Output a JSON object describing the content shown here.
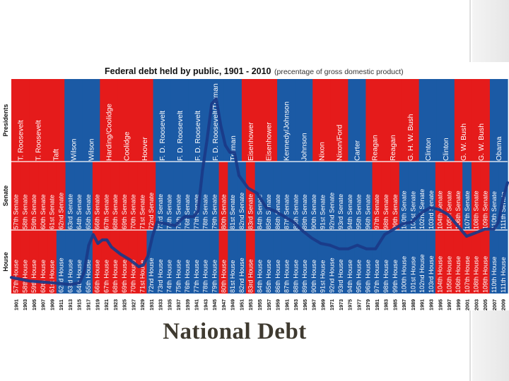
{
  "slide": {
    "title": "National Debt"
  },
  "colors": {
    "republican": "#e51b1b",
    "democrat": "#1b5aa5",
    "debt_line": "#1a3a88",
    "background": "#ffffff"
  },
  "chart_data": {
    "type": "line",
    "title": "Federal debt held by public, 1901 - 2010",
    "subtitle": "(precentage of gross domestic product)",
    "xlabel": "",
    "ylabel": "",
    "row_labels": [
      "Presidents",
      "Senate",
      "House"
    ],
    "x_ticks": [
      "1901",
      "1903",
      "1905",
      "1907",
      "1909",
      "1911",
      "1913",
      "1915",
      "1917",
      "1919",
      "1921",
      "1923",
      "1925",
      "1927",
      "1929",
      "1931",
      "1933",
      "1935",
      "1937",
      "1939",
      "1941",
      "1943",
      "1945",
      "1947",
      "1949",
      "1951",
      "1953",
      "1955",
      "1957",
      "1959",
      "1961",
      "1963",
      "1965",
      "1967",
      "1969",
      "1971",
      "1973",
      "1975",
      "1977",
      "1979",
      "1981",
      "1983",
      "1985",
      "1987",
      "1989",
      "1991",
      "1993",
      "1995",
      "1997",
      "1999",
      "2001",
      "2003",
      "2005",
      "2007",
      "2009"
    ],
    "presidents": [
      {
        "name": "T. Roosevelt",
        "party": "R"
      },
      {
        "name": "T. Roosevelt",
        "party": "R"
      },
      {
        "name": "Taft",
        "party": "R"
      },
      {
        "name": "Wilson",
        "party": "D"
      },
      {
        "name": "Wilson",
        "party": "D"
      },
      {
        "name": "Harding/Coolidge",
        "party": "R"
      },
      {
        "name": "Coolidge",
        "party": "R"
      },
      {
        "name": "Hoover",
        "party": "R"
      },
      {
        "name": "F. D. Roosevelt",
        "party": "D"
      },
      {
        "name": "F. D. Roosevelt",
        "party": "D"
      },
      {
        "name": "F. D. Roosevelt",
        "party": "D"
      },
      {
        "name": "F. D. Roosevelt/Truman",
        "party": "D"
      },
      {
        "name": "Truman",
        "party": "D"
      },
      {
        "name": "Eisenhower",
        "party": "R"
      },
      {
        "name": "Eisenhower",
        "party": "R"
      },
      {
        "name": "Kennedy/Johnson",
        "party": "D"
      },
      {
        "name": "Johnson",
        "party": "D"
      },
      {
        "name": "Nixon",
        "party": "R"
      },
      {
        "name": "Nixon/Ford",
        "party": "R"
      },
      {
        "name": "Carter",
        "party": "D"
      },
      {
        "name": "Reagan",
        "party": "R"
      },
      {
        "name": "Reagan",
        "party": "R"
      },
      {
        "name": "G. H. W. Bush",
        "party": "R"
      },
      {
        "name": "Clinton",
        "party": "D"
      },
      {
        "name": "Clinton",
        "party": "D"
      },
      {
        "name": "G. W. Bush",
        "party": "R"
      },
      {
        "name": "G. W. Bush",
        "party": "R"
      },
      {
        "name": "Obama",
        "party": "D"
      }
    ],
    "senate": [
      {
        "name": "57th Senate",
        "party": "R"
      },
      {
        "name": "58th Senate",
        "party": "R"
      },
      {
        "name": "59th Senate",
        "party": "R"
      },
      {
        "name": "60th Senate",
        "party": "R"
      },
      {
        "name": "61st Senate",
        "party": "R"
      },
      {
        "name": "62nd Senate",
        "party": "R"
      },
      {
        "name": "63rd Senate",
        "party": "D"
      },
      {
        "name": "64th Senate",
        "party": "D"
      },
      {
        "name": "65th Senate",
        "party": "D"
      },
      {
        "name": "66th Senate",
        "party": "R"
      },
      {
        "name": "67th Senate",
        "party": "R"
      },
      {
        "name": "68th Senate",
        "party": "R"
      },
      {
        "name": "69th Senate",
        "party": "R"
      },
      {
        "name": "70th Senate",
        "party": "R"
      },
      {
        "name": "71st Senate",
        "party": "R"
      },
      {
        "name": "72nd Senate",
        "party": "R"
      },
      {
        "name": "73rd Senate",
        "party": "D"
      },
      {
        "name": "74th Senate",
        "party": "D"
      },
      {
        "name": "75th Senate",
        "party": "D"
      },
      {
        "name": "76th Senate",
        "party": "D"
      },
      {
        "name": "77th Senate",
        "party": "D"
      },
      {
        "name": "78th Senate",
        "party": "D"
      },
      {
        "name": "79th Senate",
        "party": "D"
      },
      {
        "name": "80th Senate",
        "party": "R"
      },
      {
        "name": "81st Senate",
        "party": "D"
      },
      {
        "name": "82nd Senate",
        "party": "D"
      },
      {
        "name": "83rd Senate",
        "party": "R"
      },
      {
        "name": "84th Senate",
        "party": "D"
      },
      {
        "name": "85th Senate",
        "party": "D"
      },
      {
        "name": "86th Senate",
        "party": "D"
      },
      {
        "name": "87th Senate",
        "party": "D"
      },
      {
        "name": "88th Senate",
        "party": "D"
      },
      {
        "name": "89th Senate",
        "party": "D"
      },
      {
        "name": "90th Senate",
        "party": "D"
      },
      {
        "name": "91st Senate",
        "party": "D"
      },
      {
        "name": "92nd Senate",
        "party": "D"
      },
      {
        "name": "93rd Senate",
        "party": "D"
      },
      {
        "name": "94th Senate",
        "party": "D"
      },
      {
        "name": "95th Senate",
        "party": "D"
      },
      {
        "name": "96th Senate",
        "party": "D"
      },
      {
        "name": "97th Senate",
        "party": "R"
      },
      {
        "name": "98th Senate",
        "party": "R"
      },
      {
        "name": "99th Senate",
        "party": "R"
      },
      {
        "name": "100th Senate",
        "party": "D"
      },
      {
        "name": "101st Senate",
        "party": "D"
      },
      {
        "name": "102nd Senate",
        "party": "D"
      },
      {
        "name": "103rd Senate",
        "party": "D"
      },
      {
        "name": "104th Senate",
        "party": "R"
      },
      {
        "name": "105th Senate",
        "party": "R"
      },
      {
        "name": "106th Senate",
        "party": "R"
      },
      {
        "name": "107th Senate",
        "party": "D"
      },
      {
        "name": "108th Senate",
        "party": "R"
      },
      {
        "name": "109th Senate",
        "party": "R"
      },
      {
        "name": "110th Senate",
        "party": "D"
      },
      {
        "name": "111th Senate",
        "party": "D"
      }
    ],
    "house": [
      {
        "name": "57th House",
        "party": "R"
      },
      {
        "name": "58th House",
        "party": "R"
      },
      {
        "name": "59th House",
        "party": "R"
      },
      {
        "name": "60th House",
        "party": "R"
      },
      {
        "name": "61st House",
        "party": "R"
      },
      {
        "name": "62nd House",
        "party": "D"
      },
      {
        "name": "63rd House",
        "party": "D"
      },
      {
        "name": "64th House",
        "party": "D"
      },
      {
        "name": "65th House",
        "party": "D"
      },
      {
        "name": "66th House",
        "party": "R"
      },
      {
        "name": "67th House",
        "party": "R"
      },
      {
        "name": "68th House",
        "party": "R"
      },
      {
        "name": "69th House",
        "party": "R"
      },
      {
        "name": "70th House",
        "party": "R"
      },
      {
        "name": "71st House",
        "party": "R"
      },
      {
        "name": "72nd House",
        "party": "D"
      },
      {
        "name": "73rd House",
        "party": "D"
      },
      {
        "name": "74th House",
        "party": "D"
      },
      {
        "name": "75th House",
        "party": "D"
      },
      {
        "name": "76th House",
        "party": "D"
      },
      {
        "name": "77th House",
        "party": "D"
      },
      {
        "name": "78th House",
        "party": "D"
      },
      {
        "name": "79th House",
        "party": "D"
      },
      {
        "name": "80th House",
        "party": "R"
      },
      {
        "name": "81st House",
        "party": "D"
      },
      {
        "name": "82nd House",
        "party": "D"
      },
      {
        "name": "83rd House",
        "party": "R"
      },
      {
        "name": "84th House",
        "party": "D"
      },
      {
        "name": "85th House",
        "party": "D"
      },
      {
        "name": "86th House",
        "party": "D"
      },
      {
        "name": "87th House",
        "party": "D"
      },
      {
        "name": "88th House",
        "party": "D"
      },
      {
        "name": "89th House",
        "party": "D"
      },
      {
        "name": "90th House",
        "party": "D"
      },
      {
        "name": "91st House",
        "party": "D"
      },
      {
        "name": "92nd House",
        "party": "D"
      },
      {
        "name": "93rd House",
        "party": "D"
      },
      {
        "name": "94th House",
        "party": "D"
      },
      {
        "name": "95th House",
        "party": "D"
      },
      {
        "name": "96th House",
        "party": "D"
      },
      {
        "name": "97th House",
        "party": "D"
      },
      {
        "name": "98th House",
        "party": "D"
      },
      {
        "name": "99th House",
        "party": "D"
      },
      {
        "name": "100th House",
        "party": "D"
      },
      {
        "name": "101st House",
        "party": "D"
      },
      {
        "name": "102nd House",
        "party": "D"
      },
      {
        "name": "103rd House",
        "party": "D"
      },
      {
        "name": "104th House",
        "party": "R"
      },
      {
        "name": "105th House",
        "party": "R"
      },
      {
        "name": "106th House",
        "party": "R"
      },
      {
        "name": "107th House",
        "party": "R"
      },
      {
        "name": "108th House",
        "party": "R"
      },
      {
        "name": "109th House",
        "party": "R"
      },
      {
        "name": "110th House",
        "party": "D"
      },
      {
        "name": "111th House",
        "party": "D"
      }
    ],
    "series": [
      {
        "points": [
          [
            1901,
            9
          ],
          [
            1905,
            7
          ],
          [
            1910,
            6
          ],
          [
            1914,
            5
          ],
          [
            1916,
            6
          ],
          [
            1917,
            12
          ],
          [
            1918,
            27
          ],
          [
            1919,
            33
          ],
          [
            1920,
            28
          ],
          [
            1921,
            30
          ],
          [
            1922,
            30
          ],
          [
            1923,
            26
          ],
          [
            1925,
            22
          ],
          [
            1927,
            19
          ],
          [
            1929,
            15
          ],
          [
            1930,
            16
          ],
          [
            1931,
            21
          ],
          [
            1932,
            32
          ],
          [
            1933,
            40
          ],
          [
            1935,
            39
          ],
          [
            1937,
            38
          ],
          [
            1939,
            43
          ],
          [
            1941,
            43
          ],
          [
            1942,
            46
          ],
          [
            1943,
            69
          ],
          [
            1944,
            86
          ],
          [
            1945,
            106
          ],
          [
            1946,
            109
          ],
          [
            1947,
            94
          ],
          [
            1948,
            83
          ],
          [
            1949,
            79
          ],
          [
            1950,
            79
          ],
          [
            1951,
            66
          ],
          [
            1953,
            59
          ],
          [
            1955,
            56
          ],
          [
            1957,
            48
          ],
          [
            1959,
            46
          ],
          [
            1961,
            43
          ],
          [
            1963,
            40
          ],
          [
            1965,
            35
          ],
          [
            1967,
            31
          ],
          [
            1969,
            28
          ],
          [
            1971,
            27
          ],
          [
            1973,
            25
          ],
          [
            1975,
            25
          ],
          [
            1977,
            27
          ],
          [
            1979,
            25
          ],
          [
            1981,
            25
          ],
          [
            1983,
            33
          ],
          [
            1985,
            36
          ],
          [
            1987,
            39
          ],
          [
            1989,
            40
          ],
          [
            1991,
            45
          ],
          [
            1993,
            48
          ],
          [
            1995,
            47
          ],
          [
            1997,
            44
          ],
          [
            1999,
            38
          ],
          [
            2001,
            32
          ],
          [
            2003,
            34
          ],
          [
            2005,
            36
          ],
          [
            2007,
            36
          ],
          [
            2008,
            40
          ],
          [
            2009,
            53
          ],
          [
            2010,
            62
          ]
        ]
      }
    ],
    "ylim": [
      0,
      120
    ],
    "xlim": [
      1901,
      2010
    ],
    "grid": false
  }
}
